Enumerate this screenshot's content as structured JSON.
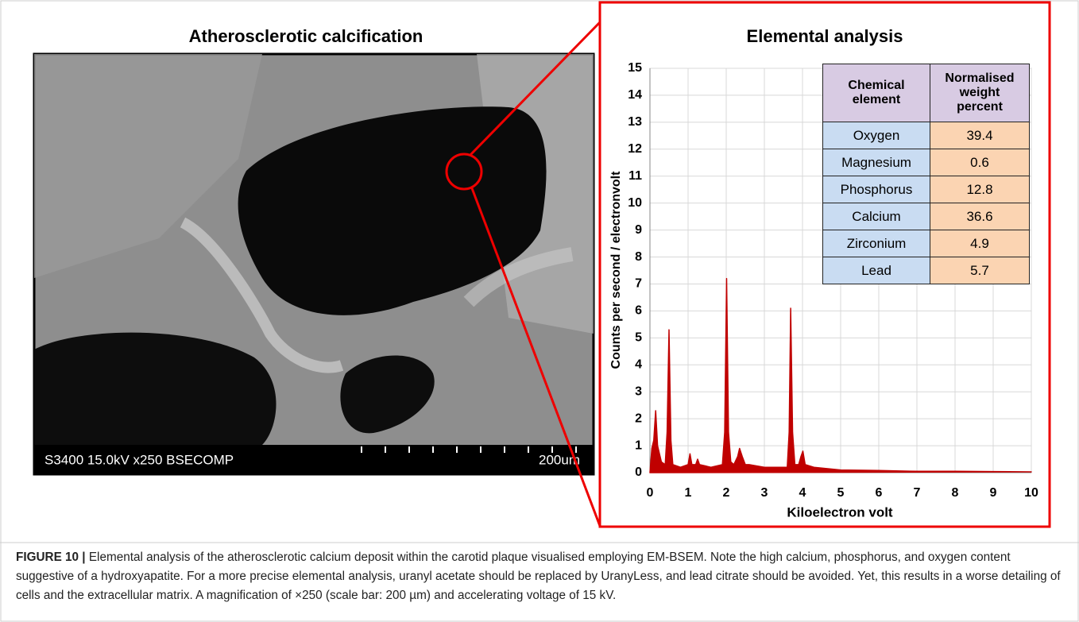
{
  "left_panel": {
    "title": "Atherosclerotic calcification",
    "image_info": "S3400 15.0kV x250 BSECOMP",
    "scale_label": "200um"
  },
  "chart_data": {
    "type": "area",
    "title": "Elemental analysis",
    "x_label": "Kiloelectron volt",
    "y_label": "Counts per second / electronvolt",
    "x": [
      0,
      0.05,
      0.1,
      0.15,
      0.2,
      0.3,
      0.4,
      0.45,
      0.5,
      0.55,
      0.6,
      0.8,
      1.0,
      1.05,
      1.1,
      1.2,
      1.25,
      1.3,
      1.6,
      1.9,
      1.96,
      2.01,
      2.06,
      2.12,
      2.2,
      2.3,
      2.35,
      2.42,
      2.5,
      2.6,
      3.0,
      3.6,
      3.65,
      3.69,
      3.74,
      3.8,
      3.9,
      3.96,
      4.01,
      4.07,
      4.3,
      5,
      6,
      7,
      8,
      9,
      10
    ],
    "values": [
      0,
      0.9,
      1.2,
      2.3,
      1.0,
      0.4,
      0.3,
      1.5,
      5.3,
      1.2,
      0.3,
      0.2,
      0.3,
      0.7,
      0.3,
      0.3,
      0.5,
      0.3,
      0.2,
      0.3,
      1.5,
      7.2,
      1.5,
      0.4,
      0.3,
      0.6,
      0.9,
      0.6,
      0.3,
      0.3,
      0.2,
      0.2,
      1.5,
      6.1,
      1.5,
      0.3,
      0.3,
      0.6,
      0.8,
      0.3,
      0.2,
      0.1,
      0.08,
      0.05,
      0.05,
      0.04,
      0.03
    ],
    "color": "#c00000",
    "xlim": [
      0,
      10
    ],
    "ylim": [
      0,
      15
    ],
    "xticks": [
      0,
      1,
      2,
      3,
      4,
      5,
      6,
      7,
      8,
      9,
      10
    ],
    "yticks": [
      0,
      1,
      2,
      3,
      4,
      5,
      6,
      7,
      8,
      9,
      10,
      11,
      12,
      13,
      14,
      15
    ],
    "grid": true
  },
  "table": {
    "header": [
      "Chemical element",
      "Normalised weight percent"
    ],
    "rows": [
      [
        "Oxygen",
        "39.4"
      ],
      [
        "Magnesium",
        "0.6"
      ],
      [
        "Phosphorus",
        "12.8"
      ],
      [
        "Calcium",
        "36.6"
      ],
      [
        "Zirconium",
        "4.9"
      ],
      [
        "Lead",
        "5.7"
      ]
    ]
  },
  "caption": {
    "label": "FIGURE 10 |",
    "text": "Elemental analysis of the atherosclerotic calcium deposit within the carotid plaque visualised employing EM-BSEM. Note the high calcium, phosphorus, and oxygen content suggestive of a hydroxyapatite. For a more precise elemental analysis, uranyl acetate should be replaced by UranyLess, and lead citrate should be avoided. Yet, this results in a worse detailing of cells and the extracellular matrix. A magnification of ×250 (scale bar: 200 µm) and accelerating voltage of 15 kV."
  }
}
